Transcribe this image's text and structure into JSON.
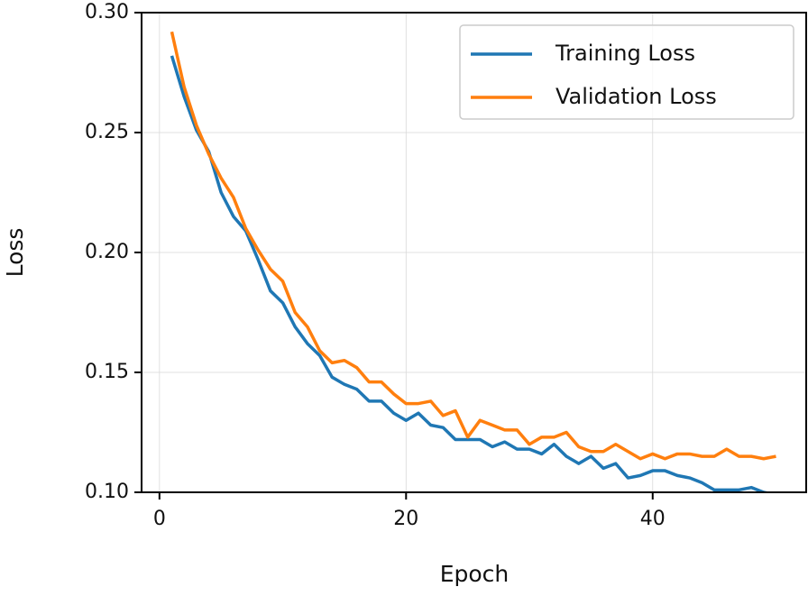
{
  "chart_data": {
    "type": "line",
    "x_label": "Epoch",
    "y_label": "Loss",
    "x": [
      1,
      2,
      3,
      4,
      5,
      6,
      7,
      8,
      9,
      10,
      11,
      12,
      13,
      14,
      15,
      16,
      17,
      18,
      19,
      20,
      21,
      22,
      23,
      24,
      25,
      26,
      27,
      28,
      29,
      30,
      31,
      32,
      33,
      34,
      35,
      36,
      37,
      38,
      39,
      40,
      41,
      42,
      43,
      44,
      45,
      46,
      47,
      48,
      49,
      50
    ],
    "series": [
      {
        "name": "Training Loss",
        "color": "#1f77b4",
        "values": [
          0.282,
          0.265,
          0.251,
          0.242,
          0.225,
          0.215,
          0.209,
          0.197,
          0.184,
          0.179,
          0.169,
          0.162,
          0.157,
          0.148,
          0.145,
          0.143,
          0.138,
          0.138,
          0.133,
          0.13,
          0.133,
          0.128,
          0.127,
          0.122,
          0.122,
          0.122,
          0.119,
          0.121,
          0.118,
          0.118,
          0.116,
          0.12,
          0.115,
          0.112,
          0.115,
          0.11,
          0.112,
          0.106,
          0.107,
          0.109,
          0.109,
          0.107,
          0.106,
          0.104,
          0.101,
          0.101,
          0.101,
          0.102,
          0.1,
          0.099
        ]
      },
      {
        "name": "Validation Loss",
        "color": "#ff7f0e",
        "values": [
          0.292,
          0.269,
          0.253,
          0.241,
          0.231,
          0.223,
          0.21,
          0.201,
          0.193,
          0.188,
          0.175,
          0.169,
          0.159,
          0.154,
          0.155,
          0.152,
          0.146,
          0.146,
          0.141,
          0.137,
          0.137,
          0.138,
          0.132,
          0.134,
          0.123,
          0.13,
          0.128,
          0.126,
          0.126,
          0.12,
          0.123,
          0.123,
          0.125,
          0.119,
          0.117,
          0.117,
          0.12,
          0.117,
          0.114,
          0.116,
          0.114,
          0.116,
          0.116,
          0.115,
          0.115,
          0.118,
          0.115,
          0.115,
          0.114,
          0.115
        ]
      }
    ],
    "xlim": [
      -1.45,
      52.45
    ],
    "ylim": [
      0.1,
      0.3
    ],
    "xticks": [
      0,
      20,
      40
    ],
    "yticks": [
      {
        "value": 0.1,
        "label": "0.10"
      },
      {
        "value": 0.15,
        "label": "0.15"
      },
      {
        "value": 0.2,
        "label": "0.20"
      },
      {
        "value": 0.25,
        "label": "0.25"
      },
      {
        "value": 0.3,
        "label": "0.30"
      }
    ],
    "grid": true,
    "legend": "upper right"
  }
}
